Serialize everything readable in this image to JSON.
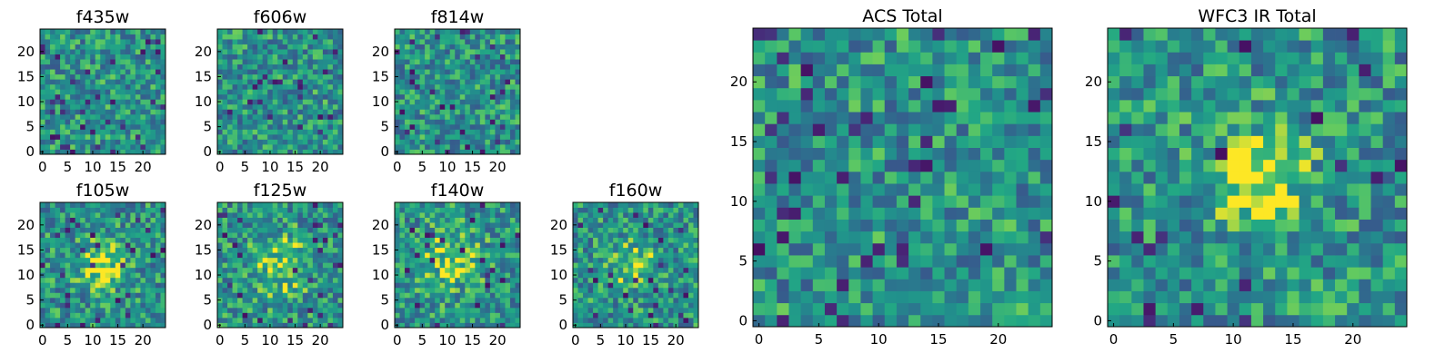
{
  "chart_data": [
    {
      "type": "heatmap",
      "title": "f435w",
      "rows": 25,
      "cols": 25,
      "xlim": [
        0,
        24
      ],
      "ylim": [
        0,
        24
      ],
      "xticks": [
        0,
        5,
        10,
        15,
        20
      ],
      "yticks": [
        0,
        5,
        10,
        15,
        20
      ],
      "colormap": "viridis",
      "blob": null
    },
    {
      "type": "heatmap",
      "title": "f606w",
      "rows": 25,
      "cols": 25,
      "xlim": [
        0,
        24
      ],
      "ylim": [
        0,
        24
      ],
      "xticks": [
        0,
        5,
        10,
        15,
        20
      ],
      "yticks": [
        0,
        5,
        10,
        15,
        20
      ],
      "colormap": "viridis",
      "blob": null
    },
    {
      "type": "heatmap",
      "title": "f814w",
      "rows": 25,
      "cols": 25,
      "xlim": [
        0,
        24
      ],
      "ylim": [
        0,
        24
      ],
      "xticks": [
        0,
        5,
        10,
        15,
        20
      ],
      "yticks": [
        0,
        5,
        10,
        15,
        20
      ],
      "colormap": "viridis",
      "blob": null
    },
    {
      "type": "heatmap",
      "title": "f105w",
      "rows": 25,
      "cols": 25,
      "xlim": [
        0,
        24
      ],
      "ylim": [
        0,
        24
      ],
      "xticks": [
        0,
        5,
        10,
        15,
        20
      ],
      "yticks": [
        0,
        5,
        10,
        15,
        20
      ],
      "colormap": "viridis",
      "blob": {
        "x": 12,
        "y": 12,
        "sigma": 3,
        "amp": 0.35
      }
    },
    {
      "type": "heatmap",
      "title": "f125w",
      "rows": 25,
      "cols": 25,
      "xlim": [
        0,
        24
      ],
      "ylim": [
        0,
        24
      ],
      "xticks": [
        0,
        5,
        10,
        15,
        20
      ],
      "yticks": [
        0,
        5,
        10,
        15,
        20
      ],
      "colormap": "viridis",
      "blob": {
        "x": 12,
        "y": 12,
        "sigma": 4,
        "amp": 0.25
      }
    },
    {
      "type": "heatmap",
      "title": "f140w",
      "rows": 25,
      "cols": 25,
      "xlim": [
        0,
        24
      ],
      "ylim": [
        0,
        24
      ],
      "xticks": [
        0,
        5,
        10,
        15,
        20
      ],
      "yticks": [
        0,
        5,
        10,
        15,
        20
      ],
      "colormap": "viridis",
      "blob": {
        "x": 11,
        "y": 13,
        "sigma": 4,
        "amp": 0.25
      }
    },
    {
      "type": "heatmap",
      "title": "f160w",
      "rows": 25,
      "cols": 25,
      "xlim": [
        0,
        24
      ],
      "ylim": [
        0,
        24
      ],
      "xticks": [
        0,
        5,
        10,
        15,
        20
      ],
      "yticks": [
        0,
        5,
        10,
        15,
        20
      ],
      "colormap": "viridis",
      "blob": {
        "x": 12,
        "y": 12,
        "sigma": 3,
        "amp": 0.3
      }
    },
    {
      "type": "heatmap",
      "title": "ACS Total",
      "rows": 25,
      "cols": 25,
      "xlim": [
        0,
        24
      ],
      "ylim": [
        0,
        24
      ],
      "xticks": [
        0,
        5,
        10,
        15,
        20
      ],
      "yticks": [
        0,
        5,
        10,
        15,
        20
      ],
      "colormap": "viridis",
      "blob": null
    },
    {
      "type": "heatmap",
      "title": "WFC3 IR Total",
      "rows": 25,
      "cols": 25,
      "xlim": [
        0,
        24
      ],
      "ylim": [
        0,
        24
      ],
      "xticks": [
        0,
        5,
        10,
        15,
        20
      ],
      "yticks": [
        0,
        5,
        10,
        15,
        20
      ],
      "colormap": "viridis",
      "blob": {
        "x": 12,
        "y": 12,
        "sigma": 2.6,
        "amp": 0.5
      }
    }
  ]
}
